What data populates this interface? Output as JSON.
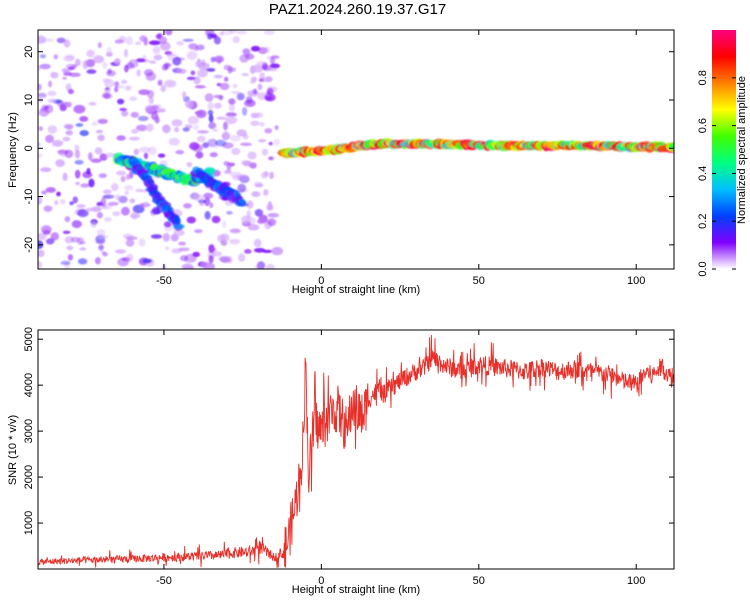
{
  "figure": {
    "title": "PAZ1.2024.260.19.37.G17"
  },
  "chart_data": [
    {
      "type": "heatmap",
      "title": "",
      "xlabel": "Height of straight line (km)",
      "ylabel": "Frequency (Hz)",
      "xlim": [
        -90,
        112
      ],
      "ylim": [
        -25,
        24.5
      ],
      "x_ticks": [
        -50,
        0,
        50,
        100
      ],
      "y_ticks": [
        -20,
        -10,
        0,
        10,
        20
      ],
      "colorbar": {
        "label": "Normalized spectral amplitude",
        "range": [
          0,
          1
        ],
        "ticks": [
          0.0,
          0.2,
          0.4,
          0.6,
          0.8
        ],
        "colormap": [
          "#ffffff",
          "#8000ff",
          "#0040ff",
          "#00c0ff",
          "#00ff80",
          "#40ff00",
          "#ffff00",
          "#ff8000",
          "#ff0000",
          "#ff0080"
        ]
      },
      "features": [
        {
          "name": "descending signal line",
          "x": [
            -65,
            -60,
            -55,
            -50,
            -45,
            -40,
            -35
          ],
          "y": [
            -2,
            -3,
            -4,
            -5,
            -6,
            -6.5,
            -5
          ],
          "amplitude": 0.3
        },
        {
          "name": "steep noisy streak",
          "x": [
            -60,
            -55,
            -50,
            -45
          ],
          "y": [
            -3,
            -7,
            -12,
            -16
          ],
          "amplitude": 0.15
        },
        {
          "name": "second noisy streak",
          "x": [
            -40,
            -35,
            -30,
            -25
          ],
          "y": [
            -5,
            -7,
            -9,
            -11
          ],
          "amplitude": 0.15
        },
        {
          "name": "main tone",
          "x": [
            -12,
            0,
            20,
            40,
            60,
            80,
            100,
            112
          ],
          "y": [
            -1,
            -0.5,
            1,
            0.8,
            0.5,
            0.6,
            0.3,
            0.2
          ],
          "amplitude": 0.95
        }
      ]
    },
    {
      "type": "line",
      "title": "",
      "xlabel": "Height of straight line (km)",
      "ylabel": "SNR (10 * v/v)",
      "xlim": [
        -90,
        112
      ],
      "ylim": [
        0,
        5200
      ],
      "x_ticks": [
        -50,
        0,
        50,
        100
      ],
      "y_ticks": [
        1000,
        2000,
        3000,
        4000,
        5000
      ],
      "color": "#e8302a",
      "series": [
        {
          "x": [
            -90,
            -80,
            -70,
            -60,
            -50,
            -40,
            -32,
            -28,
            -22,
            -20,
            -15,
            -12,
            -10,
            -8,
            -6,
            -5,
            -4,
            -3,
            -2,
            0,
            2,
            5,
            8,
            10,
            13,
            15,
            18,
            20,
            25,
            30,
            33,
            35,
            40,
            45,
            50,
            55,
            60,
            65,
            70,
            75,
            80,
            85,
            90,
            93,
            95,
            98,
            100,
            103,
            105,
            108,
            112
          ],
          "y": [
            150,
            180,
            200,
            220,
            250,
            270,
            300,
            350,
            380,
            500,
            250,
            350,
            800,
            1500,
            2500,
            4500,
            2000,
            2800,
            3200,
            3000,
            3300,
            3500,
            3000,
            3600,
            3300,
            3700,
            3900,
            3800,
            4100,
            4300,
            4400,
            4600,
            4400,
            4300,
            4450,
            4400,
            4350,
            4300,
            4400,
            4300,
            4350,
            4300,
            4250,
            4200,
            4100,
            4050,
            4000,
            4300,
            4200,
            4400,
            4100
          ]
        }
      ]
    }
  ]
}
